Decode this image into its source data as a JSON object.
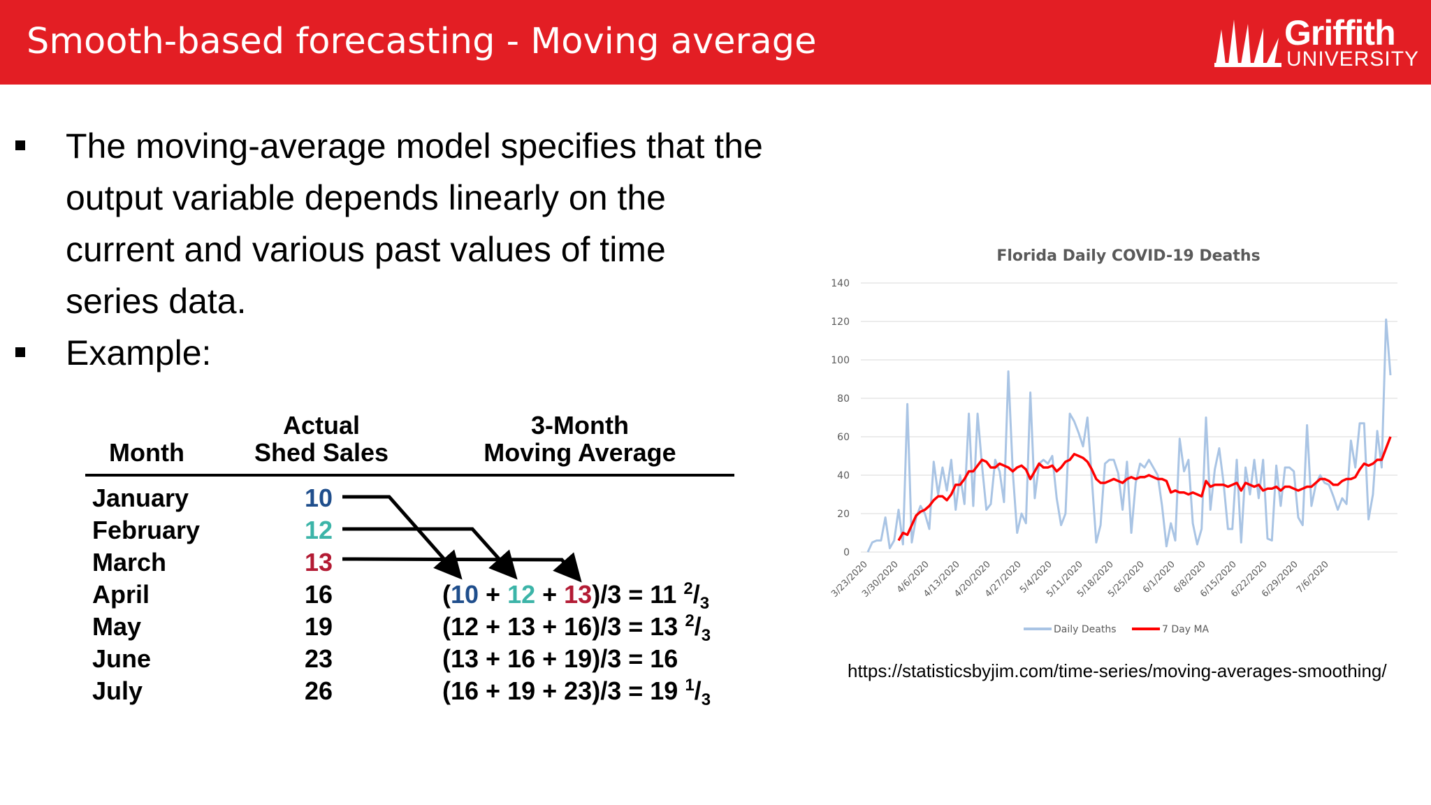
{
  "header": {
    "title": "Smooth-based forecasting -  Moving average"
  },
  "logo": {
    "name": "Griffith",
    "sub": "UNIVERSITY"
  },
  "bullets": [
    {
      "text": "The moving-average model specifies that the output variable depends linearly on the current and various past values of time series data."
    },
    {
      "text": "Example:"
    }
  ],
  "table": {
    "headers": {
      "month": "Month",
      "actual_line1": "Actual",
      "actual_line2": "Shed Sales",
      "ma_line1": "3-Month",
      "ma_line2": "Moving Average"
    },
    "rows": [
      {
        "month": "January",
        "sales": "10"
      },
      {
        "month": "February",
        "sales": "12"
      },
      {
        "month": "March",
        "sales": "13"
      },
      {
        "month": "April",
        "sales": "16",
        "ma": {
          "a": "10",
          "b": "12",
          "c": "13",
          "result": "11",
          "num": "2",
          "den": "3"
        }
      },
      {
        "month": "May",
        "sales": "19",
        "ma": {
          "a": "12",
          "b": "13",
          "c": "16",
          "result": "13",
          "num": "2",
          "den": "3"
        }
      },
      {
        "month": "June",
        "sales": "23",
        "ma": {
          "a": "13",
          "b": "16",
          "c": "19",
          "result": "16"
        }
      },
      {
        "month": "July",
        "sales": "26",
        "ma": {
          "a": "16",
          "b": "19",
          "c": "23",
          "result": "19",
          "num": "1",
          "den": "3"
        }
      }
    ],
    "colors": {
      "jan": "#1f4e8c",
      "feb": "#3cb4a8",
      "mar": "#b31b34"
    }
  },
  "chart_data": {
    "type": "line",
    "title": "Florida Daily COVID-19 Deaths",
    "xlabel": "",
    "ylabel": "",
    "ylim": [
      0,
      140
    ],
    "yticks": [
      0,
      20,
      40,
      60,
      80,
      100,
      120,
      140
    ],
    "xticks": [
      "3/23/2020",
      "3/30/2020",
      "4/6/2020",
      "4/13/2020",
      "4/20/2020",
      "4/27/2020",
      "5/4/2020",
      "5/11/2020",
      "5/18/2020",
      "5/25/2020",
      "6/1/2020",
      "6/8/2020",
      "6/15/2020",
      "6/22/2020",
      "6/29/2020",
      "7/6/2020"
    ],
    "grid": true,
    "legend": "bottom",
    "series": [
      {
        "name": "Daily Deaths",
        "color": "#a9c4e4",
        "values": [
          0,
          5,
          6,
          6,
          18,
          2,
          6,
          22,
          4,
          77,
          5,
          18,
          24,
          20,
          12,
          47,
          30,
          44,
          32,
          48,
          22,
          40,
          25,
          72,
          24,
          72,
          45,
          22,
          25,
          48,
          42,
          26,
          94,
          42,
          10,
          20,
          15,
          83,
          28,
          46,
          48,
          46,
          50,
          28,
          14,
          20,
          72,
          68,
          62,
          55,
          70,
          38,
          5,
          14,
          46,
          48,
          48,
          41,
          22,
          47,
          10,
          36,
          46,
          44,
          48,
          44,
          40,
          24,
          3,
          15,
          6,
          59,
          42,
          48,
          15,
          4,
          12,
          70,
          22,
          43,
          54,
          36,
          12,
          12,
          48,
          5,
          44,
          30,
          48,
          28,
          48,
          7,
          6,
          45,
          24,
          44,
          44,
          42,
          18,
          14,
          66,
          24,
          35,
          40,
          36,
          35,
          29,
          22,
          28,
          25,
          58,
          44,
          67,
          67,
          17,
          30,
          63,
          44,
          121,
          92
        ]
      },
      {
        "name": "7 Day MA",
        "color": "#ff0000",
        "values": [
          null,
          null,
          null,
          null,
          null,
          null,
          null,
          6,
          10,
          9,
          14,
          19,
          21,
          22,
          24,
          27,
          29,
          29,
          27,
          30,
          35,
          35,
          38,
          42,
          42,
          45,
          48,
          47,
          44,
          44,
          46,
          45,
          44,
          42,
          44,
          45,
          43,
          38,
          42,
          46,
          44,
          44,
          45,
          42,
          44,
          47,
          48,
          51,
          50,
          49,
          47,
          43,
          38,
          36,
          36,
          37,
          38,
          37,
          36,
          38,
          39,
          38,
          39,
          39,
          40,
          39,
          38,
          38,
          37,
          31,
          32,
          31,
          31,
          30,
          31,
          30,
          29,
          37,
          34,
          35,
          35,
          35,
          34,
          35,
          36,
          32,
          36,
          35,
          34,
          35,
          32,
          33,
          33,
          34,
          32,
          34,
          34,
          33,
          32,
          33,
          34,
          34,
          36,
          38,
          38,
          37,
          35,
          35,
          37,
          38,
          38,
          39,
          43,
          46,
          45,
          46,
          48,
          48,
          54,
          60
        ]
      }
    ]
  },
  "source": {
    "url": "https://statisticsbyjim.com/time-series/moving-averages-smoothing/"
  }
}
